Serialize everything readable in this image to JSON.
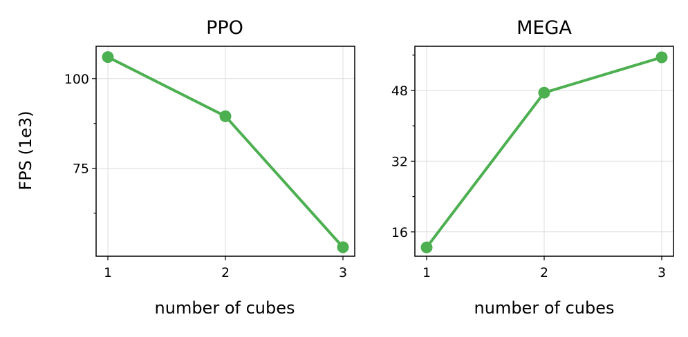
{
  "figure": {
    "ylabel": "FPS (1e3)",
    "line_color": "#4caf50"
  },
  "chart_data": [
    {
      "type": "line",
      "title": "PPO",
      "xlabel": "number of cubes",
      "ylabel": "FPS (1e3)",
      "x": [
        1,
        2,
        3
      ],
      "x_tick_labels": [
        "1",
        "2",
        "3"
      ],
      "y_tick_values": [
        75,
        100
      ],
      "y_tick_labels": [
        "75",
        "100"
      ],
      "y_minor_ticks": [
        62.5,
        87.5
      ],
      "xlim": [
        0.9,
        3.1
      ],
      "ylim": [
        50.5,
        109
      ],
      "series": [
        {
          "values": [
            106,
            89.5,
            53
          ],
          "color": "#4caf50"
        }
      ],
      "grid": true
    },
    {
      "type": "line",
      "title": "MEGA",
      "xlabel": "number of cubes",
      "ylabel": "",
      "x": [
        1,
        2,
        3
      ],
      "x_tick_labels": [
        "1",
        "2",
        "3"
      ],
      "y_tick_values": [
        16,
        32,
        48
      ],
      "y_tick_labels": [
        "16",
        "32",
        "48"
      ],
      "y_minor_ticks": [
        24,
        40,
        56
      ],
      "xlim": [
        0.9,
        3.1
      ],
      "ylim": [
        10.5,
        58
      ],
      "series": [
        {
          "values": [
            12.5,
            47.5,
            55.5
          ],
          "color": "#4caf50"
        }
      ],
      "grid": true
    }
  ]
}
